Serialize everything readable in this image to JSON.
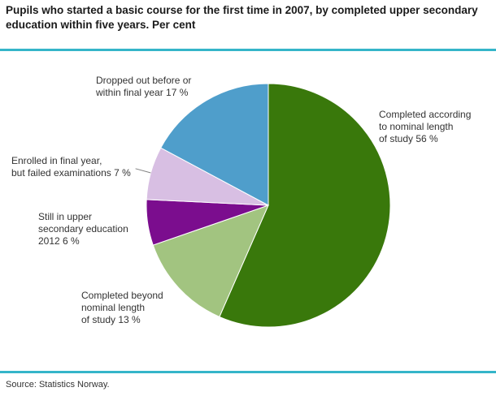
{
  "page": {
    "title": "Pupils who started a basic course for the first time in 2007, by completed upper secondary education within five years. Per cent",
    "source": "Source: Statistics Norway.",
    "accent_color": "#35b5c9"
  },
  "chart_data": {
    "type": "pie",
    "title": "Pupils who started a basic course for the first time in 2007, by completed upper secondary education within five years. Per cent",
    "unit": "%",
    "start_angle": "top",
    "direction": "clockwise",
    "legend_position": "outside-labels",
    "grid": false,
    "categories": [
      "Completed according to nominal length of study",
      "Completed beyond nominal length of study",
      "Still in upper secondary education 2012",
      "Enrolled in final year, but failed examinations",
      "Dropped out before or within final year"
    ],
    "values": [
      56,
      13,
      6,
      7,
      17
    ],
    "slices": [
      {
        "label": "Completed according to nominal length of study",
        "value": 56,
        "color": "#39780b",
        "display": "Completed according\nto nominal length\nof study 56 %",
        "leader": false
      },
      {
        "label": "Completed beyond nominal length of study",
        "value": 13,
        "color": "#a2c480",
        "display": "Completed beyond\nnominal length\nof study 13 %",
        "leader": false
      },
      {
        "label": "Still in upper secondary education 2012",
        "value": 6,
        "color": "#7b0d8e",
        "display": "Still in upper\nsecondary education\n2012 6 %",
        "leader": false
      },
      {
        "label": "Enrolled in final year, but failed examinations",
        "value": 7,
        "color": "#d8bfe3",
        "display": "Enrolled in final year,\nbut failed examinations 7 %",
        "leader": true
      },
      {
        "label": "Dropped out before or within final year",
        "value": 17,
        "color": "#4f9ecb",
        "display": "Dropped out before or\nwithin final year 17 %",
        "leader": false
      }
    ]
  }
}
